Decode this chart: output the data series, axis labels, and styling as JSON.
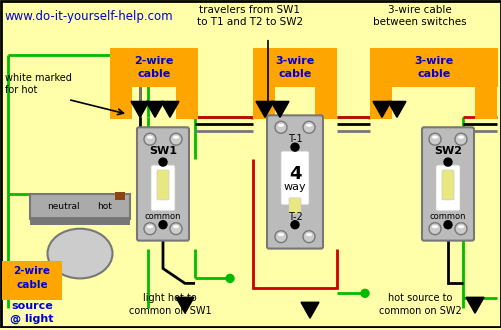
{
  "bg": "#FFFFAA",
  "orange": "#FFA500",
  "black": "#000000",
  "white": "#FFFFFF",
  "green": "#00BB00",
  "red": "#CC0000",
  "blue": "#0000DD",
  "gray": "#AAAAAA",
  "dark_gray": "#777777",
  "light_gray": "#CCCCCC",
  "sw_body": "#BBBBBB",
  "brown": "#8B4513",
  "cream": "#FFFFCC",
  "title": "www.do-it-yourself-help.com",
  "ann_travelers": "travelers from SW1\nto T1 and T2 to SW2",
  "ann_3wire": "3-wire cable\nbetween switches",
  "ann_white": "white marked\nfor hot",
  "ann_2wire": "2-wire\ncable",
  "ann_source": "source\n@ light",
  "ann_light_hot": "light hot to\ncommon on SW1",
  "ann_hot_src": "hot source to\ncommon on SW2"
}
